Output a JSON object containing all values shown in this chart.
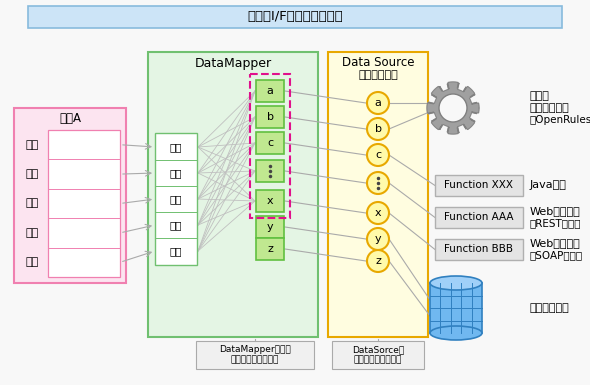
{
  "title": "共通のI/Fによる外部連携",
  "title_bg": "#cce4f7",
  "title_border": "#88bbdd",
  "bg_color": "#f8f8f8",
  "screen_a_label": "画面A",
  "screen_a_fields": [
    "日付",
    "品目",
    "数量",
    "単価",
    "金額"
  ],
  "screen_a_bg": "#fce4f0",
  "screen_a_border": "#f080b0",
  "screen_a_inner_bg": "#ffffff",
  "datamapper_label": "DataMapper",
  "datamapper_bg": "#e4f5e4",
  "datamapper_border": "#70c070",
  "datamapper_fields": [
    "日付",
    "品目",
    "数量",
    "単価",
    "金額"
  ],
  "dashed_box_border": "#e0108c",
  "var_box_bg": "#c0e890",
  "var_box_border": "#60c040",
  "datasource_label1": "Data Source",
  "datasource_label2": "（抽象化層）",
  "datasource_bg": "#fffde0",
  "datasource_border": "#e8a800",
  "circle_bg": "#fffaaa",
  "circle_border": "#e8a800",
  "functions": [
    "Function XXX",
    "Function AAA",
    "Function BBB"
  ],
  "function_bg": "#e4e4e4",
  "function_border": "#b0b0b0",
  "gear_color": "#a0a0a0",
  "gear_border": "#808080",
  "db_body_color": "#70b8f0",
  "db_top_color": "#a0d0f8",
  "db_border": "#3080c0",
  "right_labels": [
    [
      "ルール",
      "エンジン連携",
      "（OpenRules）"
    ],
    [
      "Java連携"
    ],
    [
      "Webサービス",
      "（REST連携）"
    ],
    [
      "Webサービス",
      "（SOAP連携）"
    ],
    [
      "テーブル連携"
    ]
  ],
  "bottom_label_mapper": "DataMapperからの\n変数の見え方は同じ",
  "bottom_label_source": "DataSorceに\n変数を登録し抽象化",
  "bottom_box_bg": "#f0f0f0",
  "bottom_box_border": "#aaaaaa",
  "line_color": "#aaaaaa",
  "fig_w": 5.9,
  "fig_h": 3.85,
  "dpi": 100
}
